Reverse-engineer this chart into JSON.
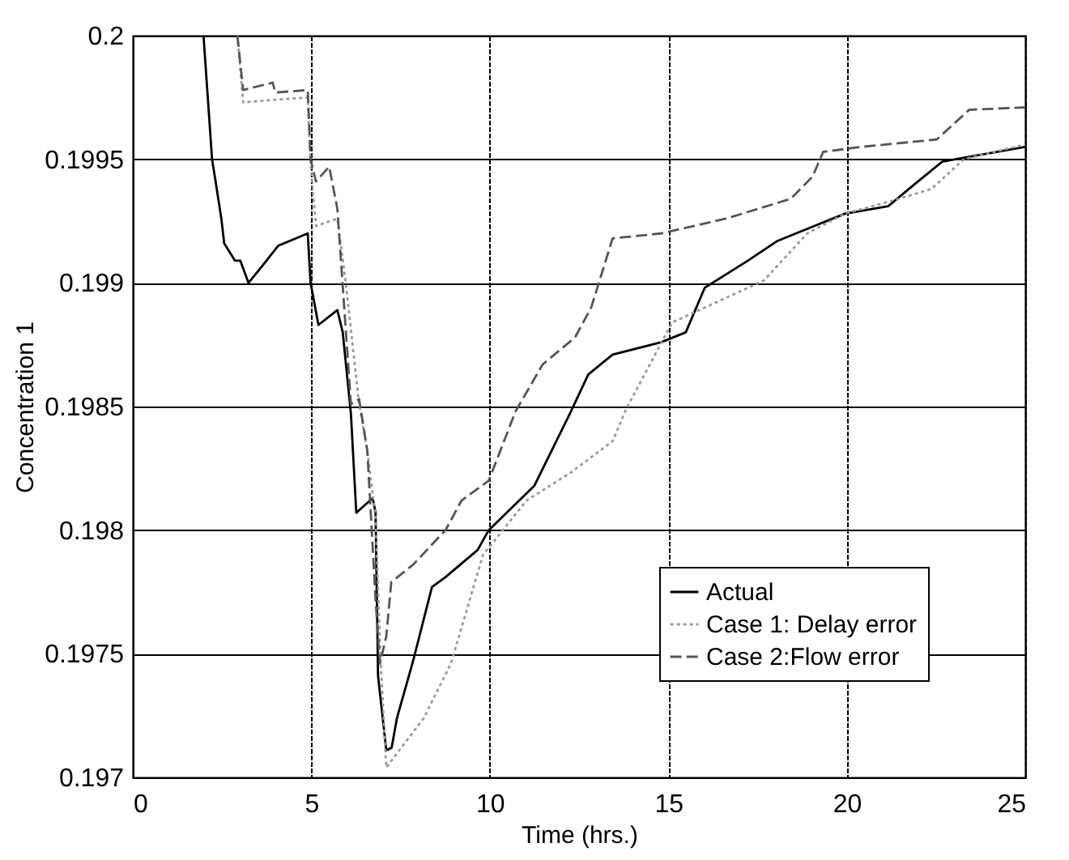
{
  "chart_data": {
    "type": "line",
    "xlabel": "Time (hrs.)",
    "ylabel": "Concentration 1",
    "xlim": [
      0,
      25
    ],
    "xticks": [
      0,
      5,
      10,
      15,
      20,
      25
    ],
    "ylim": [
      0.197,
      0.2
    ],
    "yticks": [
      0.197,
      0.1975,
      0.198,
      0.1985,
      0.199,
      0.1995,
      0.2
    ],
    "grid": true,
    "legend": "bottom right",
    "marker": "none",
    "series": [
      {
        "name": "Actual",
        "color": "#000000",
        "line_style": "solid",
        "x": [
          1.98,
          2.22,
          2.33,
          2.48,
          2.56,
          2.86,
          3.01,
          3.24,
          3.69,
          4.07,
          4.9,
          4.98,
          5.2,
          5.73,
          5.88,
          6.11,
          6.26,
          6.72,
          6.8,
          6.87,
          7.1,
          7.25,
          7.4,
          7.85,
          8.38,
          8.76,
          9.66,
          9.97,
          11.25,
          12.24,
          12.76,
          13.44,
          14.8,
          15.49,
          16.02,
          17.23,
          18.06,
          19.95,
          21.16,
          21.91,
          22.67,
          23.43,
          25
        ],
        "values": [
          0.2,
          0.1995,
          0.1994,
          0.19926,
          0.19916,
          0.19909,
          0.19909,
          0.199,
          0.19908,
          0.19915,
          0.1992,
          0.199,
          0.19883,
          0.19889,
          0.1988,
          0.19847,
          0.19807,
          0.19813,
          0.19807,
          0.19741,
          0.19711,
          0.19712,
          0.19724,
          0.19747,
          0.19777,
          0.19781,
          0.19792,
          0.198,
          0.19818,
          0.19847,
          0.19863,
          0.19871,
          0.19876,
          0.1988,
          0.19898,
          0.19909,
          0.19917,
          0.19928,
          0.19931,
          0.1994,
          0.19949,
          0.19951,
          0.19955
        ]
      },
      {
        "name": "Case 1: Delay error",
        "color": "#9a9a9a",
        "line_style": "dotted",
        "x": [
          2.93,
          3.09,
          3.92,
          4.9,
          4.98,
          5.13,
          5.73,
          5.95,
          6.34,
          6.57,
          6.8,
          6.94,
          7.1,
          8.15,
          8.91,
          9.81,
          11.03,
          12.24,
          13.44,
          13.82,
          15.11,
          17.68,
          18.89,
          19.95,
          21.46,
          22.37,
          23.28,
          25
        ],
        "values": [
          0.2,
          0.19973,
          0.19974,
          0.19975,
          0.19948,
          0.19923,
          0.19926,
          0.19902,
          0.19851,
          0.19832,
          0.19805,
          0.19748,
          0.19704,
          0.19724,
          0.19746,
          0.1979,
          0.19812,
          0.19823,
          0.19836,
          0.19849,
          0.19884,
          0.19901,
          0.1992,
          0.19928,
          0.19934,
          0.19938,
          0.1995,
          0.19956
        ]
      },
      {
        "name": "Case 2:Flow error",
        "color": "#555555",
        "line_style": "dashed",
        "x": [
          2.93,
          3.09,
          3.92,
          3.99,
          4.9,
          4.98,
          5.13,
          5.5,
          5.73,
          6.11,
          6.34,
          6.57,
          6.8,
          6.92,
          7.1,
          7.24,
          7.85,
          8.76,
          9.21,
          9.97,
          10.72,
          11.48,
          12.39,
          12.84,
          13.44,
          14.8,
          16.62,
          18.43,
          19.04,
          19.34,
          20.4,
          22.52,
          23.43,
          25
        ],
        "values": [
          0.2,
          0.19978,
          0.19981,
          0.19977,
          0.19978,
          0.1995,
          0.19941,
          0.19947,
          0.1993,
          0.19851,
          0.19853,
          0.19832,
          0.19772,
          0.19746,
          0.19757,
          0.19779,
          0.19786,
          0.198,
          0.19812,
          0.1982,
          0.19848,
          0.19867,
          0.19878,
          0.1989,
          0.19918,
          0.1992,
          0.19926,
          0.19934,
          0.19943,
          0.19953,
          0.19955,
          0.19958,
          0.1997,
          0.19971
        ]
      }
    ]
  }
}
